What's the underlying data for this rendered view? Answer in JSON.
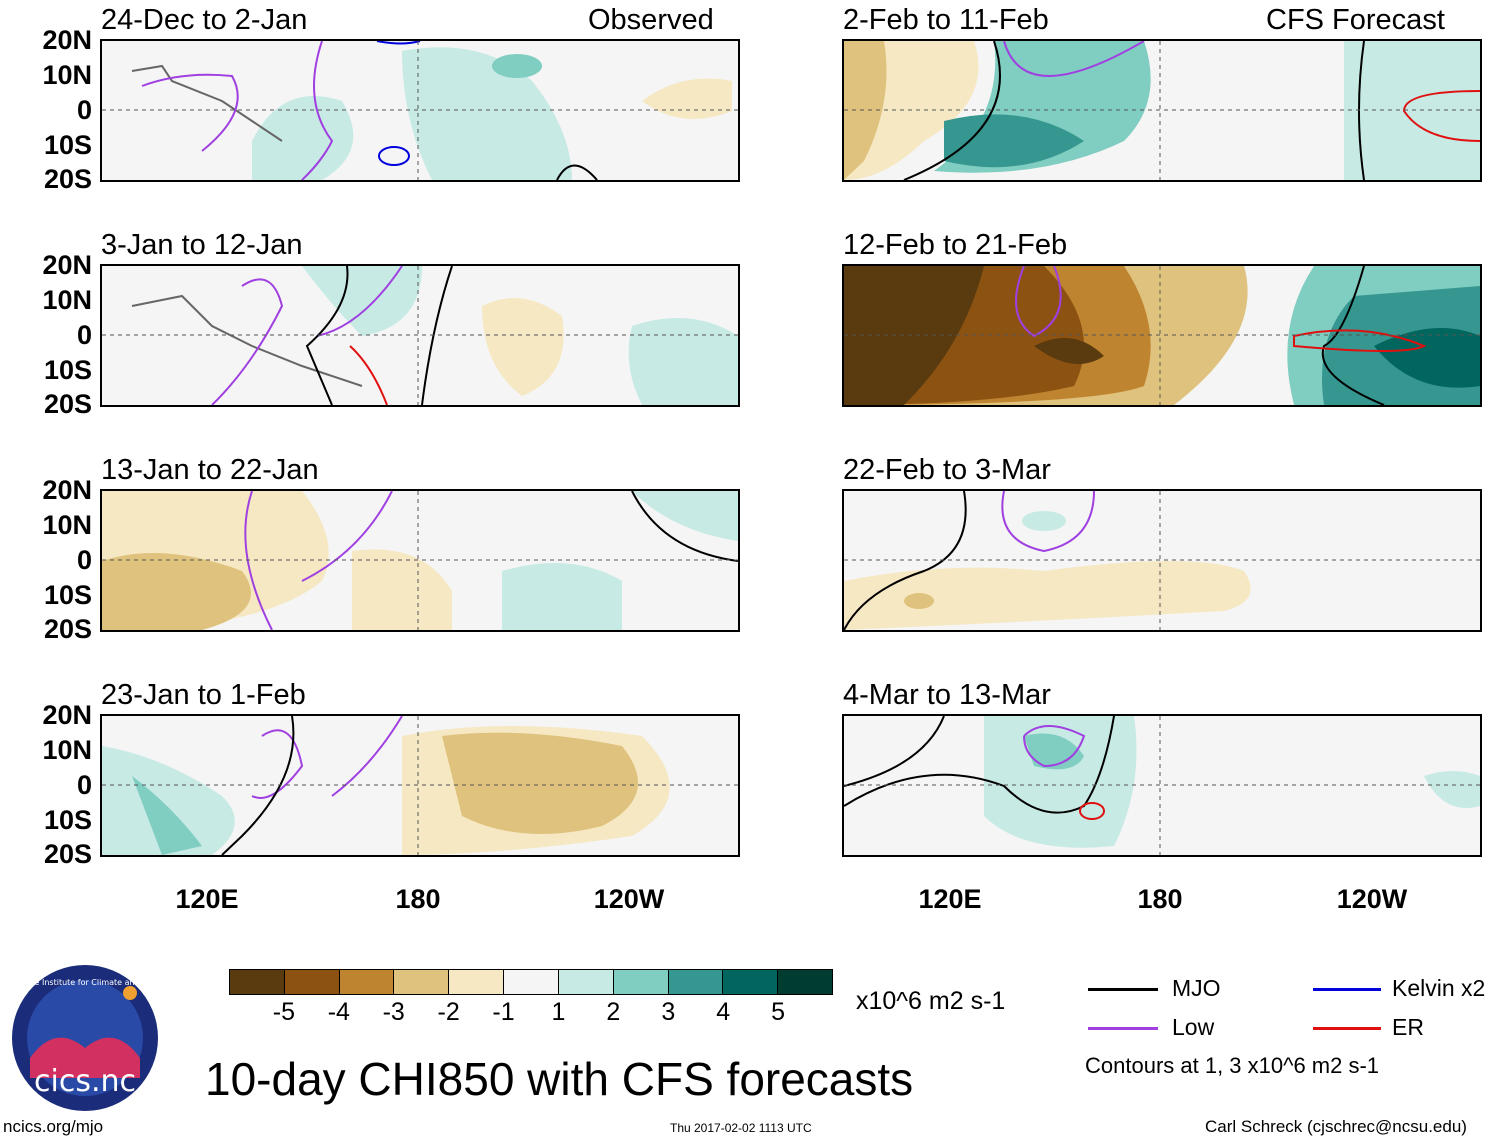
{
  "title": "10-day CHI850 with CFS forecasts",
  "left_header": "Observed",
  "right_header": "CFS Forecast",
  "panels_left": [
    "24-Dec to 2-Jan",
    "3-Jan to 12-Jan",
    "13-Jan to 22-Jan",
    "23-Jan to 1-Feb"
  ],
  "panels_right": [
    "2-Feb to 11-Feb",
    "12-Feb to 21-Feb",
    "22-Feb to 3-Mar",
    "4-Mar to 13-Mar"
  ],
  "lat_labels": [
    "20N",
    "10N",
    "0",
    "10S",
    "20S"
  ],
  "lon_labels": [
    "120E",
    "180",
    "120W"
  ],
  "colorbar": {
    "colors": [
      "#5a3a0f",
      "#8c5212",
      "#bf8430",
      "#dfc27d",
      "#f6e8c3",
      "#f5f5f5",
      "#c7eae5",
      "#80cdc1",
      "#35978f",
      "#01665e",
      "#003c30"
    ],
    "ticks": [
      "-5",
      "-4",
      "-3",
      "-2",
      "-1",
      "1",
      "2",
      "3",
      "4",
      "5"
    ],
    "units": "x10^6 m2 s-1"
  },
  "legend": {
    "items": [
      {
        "label": "MJO",
        "color": "#000000"
      },
      {
        "label": "Kelvin x2",
        "color": "#0000dd"
      },
      {
        "label": "Low",
        "color": "#a040e0"
      },
      {
        "label": "ER",
        "color": "#e01010"
      }
    ],
    "note": "Contours at 1, 3 x10^6 m2 s-1"
  },
  "footer": {
    "left": "ncics.org/mjo",
    "center": "Thu 2017-02-02 1113 UTC",
    "right": "Carl Schreck (cjschrec@ncsu.edu)"
  },
  "logo": {
    "text": "cics.nc",
    "ring": "Cooperative Institute for Climate and Satellites"
  }
}
